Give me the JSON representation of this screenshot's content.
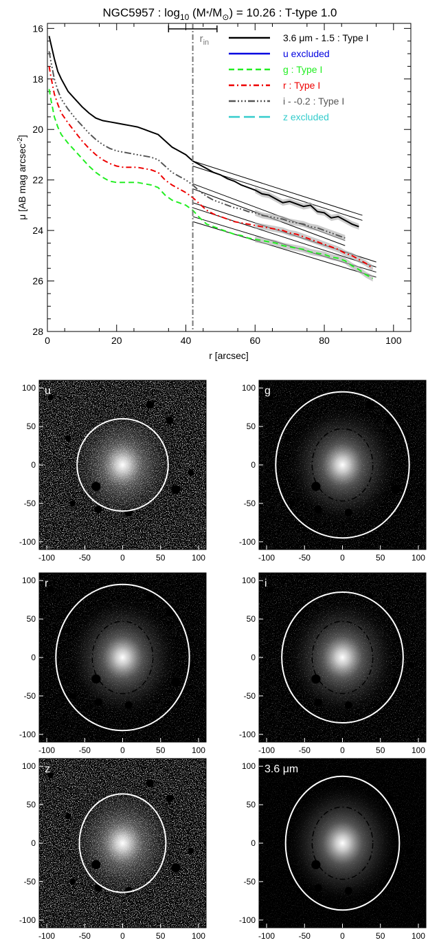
{
  "title": {
    "prefix": "NGC5957 : log",
    "sub": "10",
    "mid": " (M",
    "star": "*",
    "slash": "/M",
    "sun": "⊙",
    "suffix": ") = 10.26 : T-type 1.0"
  },
  "chart_data": [
    {
      "type": "line",
      "xlabel": "r [arcsec]",
      "ylabel_main": "μ [AB mag arcsec",
      "ylabel_sup": "-2",
      "ylabel_end": "]",
      "xlim": [
        0,
        105
      ],
      "ylim": [
        28,
        15.8
      ],
      "y_inverted": true,
      "xticks": [
        0,
        20,
        40,
        60,
        80,
        100
      ],
      "yticks": [
        16,
        18,
        20,
        22,
        24,
        26,
        28
      ],
      "r_in": 42,
      "r_in_label": "r",
      "r_in_sub": "in",
      "r_in_bar": [
        35,
        49
      ],
      "series": [
        {
          "name": "3.6 μm - 1.5 : Type I",
          "color": "#000000",
          "dash": "",
          "width": 2,
          "x": [
            0.5,
            1,
            2,
            3,
            4,
            6,
            8,
            10,
            12,
            14,
            16,
            18,
            20,
            22,
            24,
            26,
            28,
            30,
            32,
            34,
            36,
            38,
            40,
            42,
            44,
            46,
            48,
            50,
            52,
            54,
            56,
            58,
            60,
            62,
            64,
            66,
            68,
            70,
            72,
            74,
            76,
            78,
            80,
            82,
            84,
            86,
            88,
            90
          ],
          "y": [
            16.3,
            16.6,
            17.2,
            17.7,
            18.0,
            18.5,
            18.8,
            19.1,
            19.35,
            19.55,
            19.65,
            19.7,
            19.75,
            19.8,
            19.85,
            19.9,
            20.0,
            20.1,
            20.2,
            20.45,
            20.7,
            20.85,
            21.0,
            21.25,
            21.4,
            21.55,
            21.7,
            21.8,
            21.95,
            22.05,
            22.2,
            22.3,
            22.4,
            22.55,
            22.6,
            22.75,
            22.9,
            22.85,
            22.95,
            23.05,
            23.0,
            23.25,
            23.3,
            23.5,
            23.45,
            23.6,
            23.75,
            23.85
          ],
          "fit": [
            [
              42,
              21.45
            ],
            [
              91,
              23.6
            ]
          ],
          "fit2": [
            [
              42,
              21.25
            ],
            [
              91,
              23.4
            ]
          ]
        },
        {
          "name": "u excluded",
          "color": "#0000e0",
          "dash": "",
          "width": 2,
          "x": [],
          "y": []
        },
        {
          "name": "g : Type I",
          "color": "#22ee22",
          "dash": "8,5",
          "width": 2,
          "x": [
            0.5,
            1,
            2,
            3,
            4,
            6,
            8,
            10,
            12,
            14,
            16,
            18,
            20,
            22,
            24,
            26,
            28,
            30,
            32,
            34,
            36,
            38,
            40,
            42,
            44,
            46,
            48,
            50,
            52,
            54,
            56,
            58,
            60,
            62,
            64,
            66,
            68,
            70,
            72,
            74,
            76,
            78,
            80,
            82,
            84,
            86,
            88,
            90,
            92,
            94
          ],
          "y": [
            18.4,
            18.8,
            19.5,
            19.9,
            20.2,
            20.55,
            20.85,
            21.15,
            21.45,
            21.7,
            21.9,
            22.05,
            22.1,
            22.1,
            22.1,
            22.1,
            22.15,
            22.2,
            22.3,
            22.6,
            22.8,
            22.9,
            23.0,
            23.2,
            23.5,
            23.75,
            23.85,
            23.95,
            24.05,
            24.15,
            24.2,
            24.3,
            24.35,
            24.4,
            24.45,
            24.5,
            24.6,
            24.65,
            24.7,
            24.75,
            24.85,
            24.9,
            24.95,
            25.05,
            25.1,
            25.2,
            25.4,
            25.55,
            25.75,
            25.9
          ],
          "fit": [
            [
              42,
              23.65
            ],
            [
              95,
              25.85
            ]
          ],
          "fit2": [
            [
              42,
              23.45
            ],
            [
              95,
              25.65
            ]
          ]
        },
        {
          "name": "r : Type I",
          "color": "#ee0000",
          "dash": "8,4,2,4",
          "width": 2,
          "x": [
            0.5,
            1,
            2,
            3,
            4,
            6,
            8,
            10,
            12,
            14,
            16,
            18,
            20,
            22,
            24,
            26,
            28,
            30,
            32,
            34,
            36,
            38,
            40,
            42,
            44,
            46,
            48,
            50,
            52,
            54,
            56,
            58,
            60,
            62,
            64,
            66,
            68,
            70,
            72,
            74,
            76,
            78,
            80,
            82,
            84,
            86,
            88,
            90,
            92,
            94
          ],
          "y": [
            17.5,
            17.9,
            18.6,
            19.0,
            19.35,
            19.75,
            20.1,
            20.45,
            20.75,
            21.0,
            21.2,
            21.35,
            21.45,
            21.5,
            21.5,
            21.5,
            21.55,
            21.6,
            21.7,
            22.0,
            22.2,
            22.35,
            22.5,
            22.7,
            22.95,
            23.2,
            23.35,
            23.45,
            23.55,
            23.65,
            23.7,
            23.75,
            23.8,
            23.85,
            23.9,
            23.95,
            24.0,
            24.1,
            24.15,
            24.25,
            24.35,
            24.45,
            24.55,
            24.65,
            24.75,
            24.9,
            25.0,
            25.15,
            25.3,
            25.5
          ],
          "fit": [
            [
              42,
              23.1
            ],
            [
              95,
              25.45
            ]
          ],
          "fit2": [
            [
              42,
              22.9
            ],
            [
              95,
              25.25
            ]
          ]
        },
        {
          "name": "i - -0.2 : Type I",
          "color": "#555555",
          "dash": "10,3,2,3,2,3,2,3",
          "width": 2,
          "x": [
            0.5,
            1,
            2,
            3,
            4,
            6,
            8,
            10,
            12,
            14,
            16,
            18,
            20,
            22,
            24,
            26,
            28,
            30,
            32,
            34,
            36,
            38,
            40,
            42,
            44,
            46,
            48,
            50,
            52,
            54,
            56,
            58,
            60,
            62,
            64,
            66,
            68,
            70,
            72,
            74,
            76,
            78,
            80,
            82,
            84,
            86
          ],
          "y": [
            16.9,
            17.3,
            18.0,
            18.45,
            18.8,
            19.2,
            19.55,
            19.85,
            20.15,
            20.4,
            20.6,
            20.75,
            20.85,
            20.9,
            20.95,
            21.0,
            21.05,
            21.1,
            21.2,
            21.45,
            21.7,
            21.85,
            22.0,
            22.2,
            22.45,
            22.65,
            22.8,
            22.9,
            23.0,
            23.1,
            23.15,
            23.25,
            23.3,
            23.4,
            23.45,
            23.5,
            23.55,
            23.65,
            23.7,
            23.75,
            23.85,
            23.9,
            24.0,
            24.1,
            24.2,
            24.3
          ],
          "fit": [
            [
              42,
              22.35
            ],
            [
              86,
              24.6
            ]
          ],
          "fit2": [
            [
              42,
              22.15
            ],
            [
              86,
              24.4
            ]
          ]
        },
        {
          "name": "z excluded",
          "color": "#33cccc",
          "dash": "16,6",
          "width": 2,
          "x": [],
          "y": []
        }
      ]
    }
  ],
  "panels": [
    {
      "label": "u",
      "inner": false,
      "outer_rx": 60,
      "outer_ry": 60
    },
    {
      "label": "g",
      "inner": true,
      "outer_rx": 88,
      "outer_ry": 95
    },
    {
      "label": "r",
      "inner": true,
      "outer_rx": 88,
      "outer_ry": 95
    },
    {
      "label": "i",
      "inner": true,
      "outer_rx": 80,
      "outer_ry": 85
    },
    {
      "label": "z",
      "inner": false,
      "outer_rx": 57,
      "outer_ry": 64
    },
    {
      "label": "3.6 μm",
      "inner": true,
      "outer_rx": 75,
      "outer_ry": 87
    }
  ],
  "panel_ticks": [
    "-100",
    "-50",
    "0",
    "50",
    "100"
  ]
}
